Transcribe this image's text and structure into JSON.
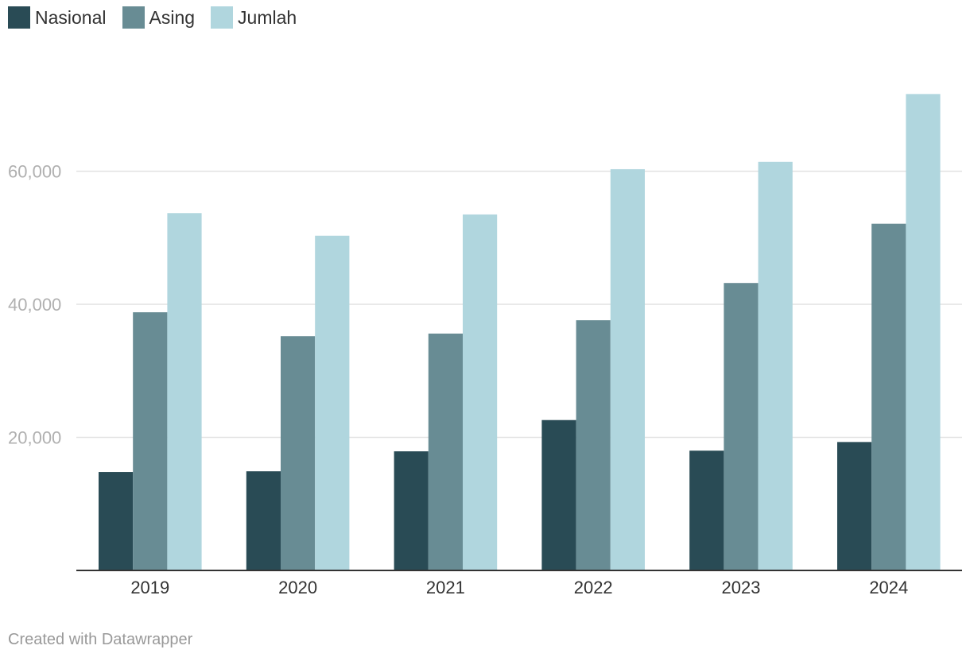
{
  "chart_data": {
    "type": "bar",
    "categories": [
      "2019",
      "2020",
      "2021",
      "2022",
      "2023",
      "2024"
    ],
    "series": [
      {
        "name": "Nasional",
        "color": "#294b55",
        "values": [
          14800,
          14900,
          17900,
          22600,
          18000,
          19300
        ]
      },
      {
        "name": "Asing",
        "color": "#688c94",
        "values": [
          38800,
          35200,
          35600,
          37600,
          43200,
          52100
        ]
      },
      {
        "name": "Jumlah",
        "color": "#b0d6de",
        "values": [
          53700,
          50300,
          53500,
          60300,
          61400,
          71600
        ]
      }
    ],
    "y_ticks": [
      20000,
      40000,
      60000
    ],
    "y_tick_labels": [
      "20,000",
      "40,000",
      "60,000"
    ],
    "ylim": [
      0,
      72000
    ],
    "grid": true,
    "legend_position": "top-left",
    "credit": "Created with Datawrapper"
  }
}
